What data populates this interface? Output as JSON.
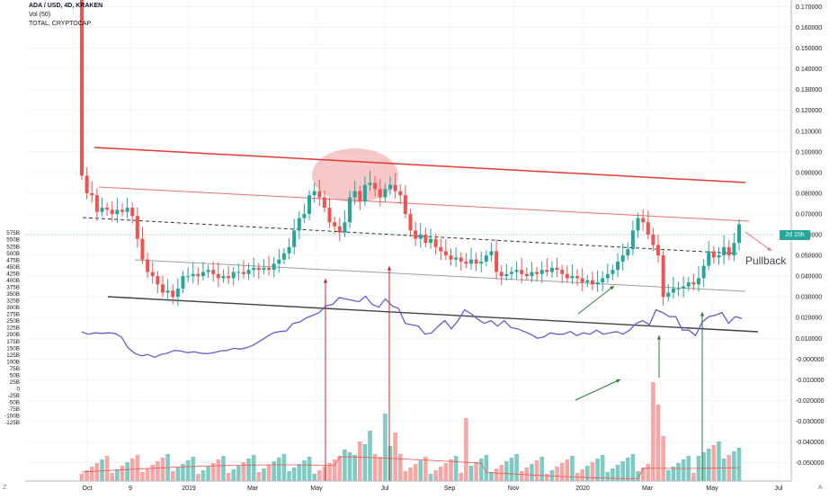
{
  "legend": {
    "symbol": "ADA / USD, 4D, KRAKEN",
    "volume": "Vol (50)",
    "overlay": "TOTAL, CRYPTOCAP"
  },
  "annotation": "Pullback",
  "countdown": "2d 15h",
  "corner_left": "Z",
  "corner_right": "A",
  "colors": {
    "up": "#26a69a",
    "down": "#ef5350",
    "up_vol": "#7fcbc4",
    "down_vol": "#f4a7a5",
    "overlay": "#6a5acd",
    "channel_top": "#e53935",
    "channel_mid": "#e57373",
    "support": "#424242",
    "current_line": "#26a69a"
  },
  "chart_data": {
    "type": "candlestick",
    "title": "ADA / USD, 4D, KRAKEN",
    "x_ticks": [
      "Oct",
      "9",
      "2019",
      "Mar",
      "May",
      "Jul",
      "Sep",
      "Nov",
      "2020",
      "Mar",
      "May",
      "Jul"
    ],
    "right_axis": {
      "ylim": [
        -0.055,
        0.175
      ],
      "ticks": [
        "0.170000",
        "0.160000",
        "0.150000",
        "0.140000",
        "0.130000",
        "0.120000",
        "0.110000",
        "0.100000",
        "0.090000",
        "0.080000",
        "0.070000",
        "0.060000",
        "0.050000",
        "0.040000",
        "0.030000",
        "0.020000",
        "0.010000",
        "-0.000000",
        "-0.010000",
        "-0.020000",
        "-0.030000",
        "-0.040000",
        "-0.050000"
      ]
    },
    "left_axis": {
      "label": "TOTAL",
      "ticks": [
        "575B",
        "550B",
        "525B",
        "500B",
        "475B",
        "450B",
        "425B",
        "400B",
        "375B",
        "350B",
        "325B",
        "300B",
        "275B",
        "250B",
        "225B",
        "200B",
        "175B",
        "150B",
        "125B",
        "100B",
        "75B",
        "50B",
        "25B",
        "0",
        "-25B",
        "-50B",
        "-75B",
        "-100B",
        "-125B"
      ]
    },
    "price_close_approx": [
      0.0885,
      0.08,
      0.079,
      0.071,
      0.073,
      0.072,
      0.07,
      0.072,
      0.071,
      0.073,
      0.069,
      0.058,
      0.048,
      0.042,
      0.04,
      0.036,
      0.032,
      0.033,
      0.03,
      0.034,
      0.04,
      0.04,
      0.041,
      0.04,
      0.042,
      0.043,
      0.041,
      0.039,
      0.04,
      0.039,
      0.042,
      0.042,
      0.041,
      0.043,
      0.044,
      0.043,
      0.044,
      0.043,
      0.046,
      0.048,
      0.051,
      0.054,
      0.062,
      0.068,
      0.07,
      0.079,
      0.081,
      0.078,
      0.073,
      0.066,
      0.064,
      0.061,
      0.066,
      0.078,
      0.081,
      0.076,
      0.084,
      0.085,
      0.082,
      0.078,
      0.082,
      0.084,
      0.081,
      0.079,
      0.07,
      0.062,
      0.058,
      0.06,
      0.056,
      0.058,
      0.054,
      0.052,
      0.05,
      0.048,
      0.049,
      0.047,
      0.046,
      0.048,
      0.046,
      0.047,
      0.05,
      0.052,
      0.042,
      0.04,
      0.041,
      0.042,
      0.043,
      0.041,
      0.04,
      0.042,
      0.041,
      0.043,
      0.042,
      0.044,
      0.043,
      0.041,
      0.039,
      0.04,
      0.039,
      0.037,
      0.038,
      0.036,
      0.037,
      0.039,
      0.041,
      0.043,
      0.047,
      0.05,
      0.053,
      0.062,
      0.068,
      0.066,
      0.06,
      0.055,
      0.05,
      0.03,
      0.032,
      0.034,
      0.034,
      0.035,
      0.037,
      0.036,
      0.039,
      0.045,
      0.052,
      0.049,
      0.05,
      0.054,
      0.05,
      0.056,
      0.065
    ],
    "total_mcap_overlay_approx_B": [
      208,
      200,
      205,
      203,
      205,
      203,
      190,
      150,
      130,
      120,
      125,
      115,
      125,
      130,
      140,
      138,
      132,
      135,
      130,
      128,
      132,
      138,
      140,
      148,
      145,
      150,
      160,
      175,
      190,
      205,
      210,
      212,
      240,
      245,
      260,
      270,
      280,
      305,
      310,
      335,
      330,
      325,
      320,
      340,
      310,
      300,
      330,
      305,
      295,
      240,
      235,
      230,
      200,
      205,
      230,
      250,
      220,
      250,
      290,
      275,
      255,
      240,
      250,
      230,
      250,
      225,
      220,
      210,
      200,
      185,
      190,
      205,
      200,
      200,
      210,
      195,
      205,
      200,
      215,
      200,
      205,
      210,
      200,
      215,
      240,
      250,
      235,
      290,
      280,
      265,
      265,
      215,
      215,
      195,
      245,
      265,
      270,
      280,
      240,
      265,
      258
    ],
    "channel_lines": [
      {
        "name": "upper channel",
        "from": [
          "Oct 2018",
          0.096
        ],
        "to": [
          "May 2020",
          0.081
        ]
      },
      {
        "name": "inner upper",
        "from": [
          "Oct 2018",
          0.081
        ],
        "to": [
          "May 2020",
          0.068
        ]
      },
      {
        "name": "dashed midline",
        "from": [
          "Oct 2018",
          0.068
        ],
        "to": [
          "May 2020",
          0.052
        ]
      },
      {
        "name": "inner lower",
        "from": [
          "Oct 2018",
          0.052
        ],
        "to": [
          "May 2020",
          0.04
        ]
      },
      {
        "name": "support",
        "from": [
          "Nov 2018",
          0.042
        ],
        "to": [
          "Jun 2020",
          0.024
        ]
      }
    ],
    "annotations": [
      "Pullback"
    ],
    "volume": {
      "name": "Vol (50)"
    }
  }
}
